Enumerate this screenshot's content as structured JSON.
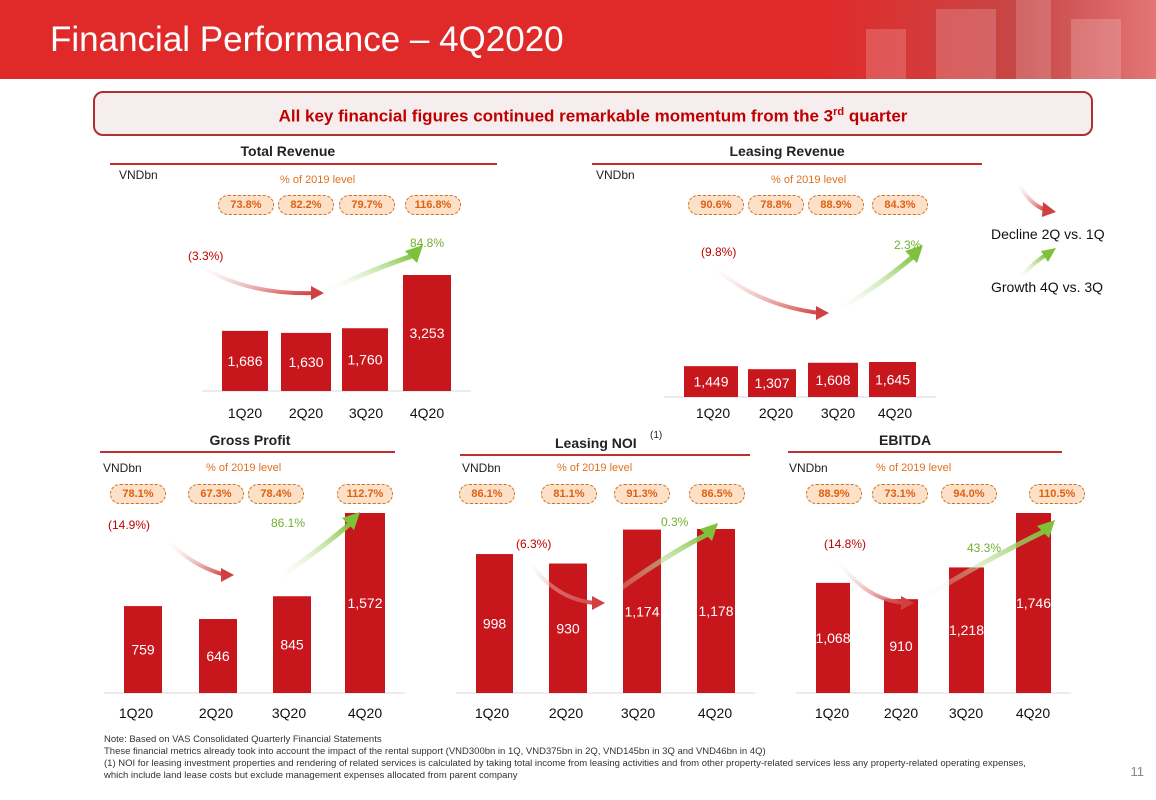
{
  "header": {
    "title": "Financial Performance – 4Q2020"
  },
  "banner": {
    "text": "All key financial figures continued remarkable momentum from the 3",
    "sup": "rd",
    "tail": " quarter"
  },
  "legend": {
    "decline": "Decline 2Q vs. 1Q",
    "growth": "Growth 4Q vs. 3Q"
  },
  "colors": {
    "bar": "#c8161d",
    "decline_arrow": "#d04040",
    "growth_arrow": "#7dc23a",
    "header": "#e02a2a"
  },
  "chart_data": [
    {
      "type": "bar",
      "title": "Total Revenue",
      "unit": "VNDbn",
      "pct_label": "% of 2019 level",
      "categories": [
        "1Q20",
        "2Q20",
        "3Q20",
        "4Q20"
      ],
      "values": [
        1686,
        1630,
        1760,
        3253
      ],
      "value_labels": [
        "1,686",
        "1,630",
        "1,760",
        "3,253"
      ],
      "pct_of_2019": [
        "73.8%",
        "82.2%",
        "79.7%",
        "116.8%"
      ],
      "decline_label": "(3.3%)",
      "growth_label": "84.8%"
    },
    {
      "type": "bar",
      "title": "Leasing Revenue",
      "unit": "VNDbn",
      "pct_label": "% of 2019 level",
      "categories": [
        "1Q20",
        "2Q20",
        "3Q20",
        "4Q20"
      ],
      "values": [
        1449,
        1307,
        1608,
        1645
      ],
      "value_labels": [
        "1,449",
        "1,307",
        "1,608",
        "1,645"
      ],
      "pct_of_2019": [
        "90.6%",
        "78.8%",
        "88.9%",
        "84.3%"
      ],
      "decline_label": "(9.8%)",
      "growth_label": "2.3%"
    },
    {
      "type": "bar",
      "title": "Gross Profit",
      "unit": "VNDbn",
      "pct_label": "% of 2019 level",
      "categories": [
        "1Q20",
        "2Q20",
        "3Q20",
        "4Q20"
      ],
      "values": [
        759,
        646,
        845,
        1572
      ],
      "value_labels": [
        "759",
        "646",
        "845",
        "1,572"
      ],
      "pct_of_2019": [
        "78.1%",
        "67.3%",
        "78.4%",
        "112.7%"
      ],
      "decline_label": "(14.9%)",
      "growth_label": "86.1%"
    },
    {
      "type": "bar",
      "title": "Leasing NOI",
      "title_sup": "(1)",
      "unit": "VNDbn",
      "pct_label": "% of 2019 level",
      "categories": [
        "1Q20",
        "2Q20",
        "3Q20",
        "4Q20"
      ],
      "values": [
        998,
        930,
        1174,
        1178
      ],
      "value_labels": [
        "998",
        "930",
        "1,174",
        "1,178"
      ],
      "pct_of_2019": [
        "86.1%",
        "81.1%",
        "91.3%",
        "86.5%"
      ],
      "decline_label": "(6.3%)",
      "growth_label": "0.3%"
    },
    {
      "type": "bar",
      "title": "EBITDA",
      "unit": "VNDbn",
      "pct_label": "% of 2019 level",
      "categories": [
        "1Q20",
        "2Q20",
        "3Q20",
        "4Q20"
      ],
      "values": [
        1068,
        910,
        1218,
        1746
      ],
      "value_labels": [
        "1,068",
        "910",
        "1,218",
        "1,746"
      ],
      "pct_of_2019": [
        "88.9%",
        "73.1%",
        "94.0%",
        "110.5%"
      ],
      "decline_label": "(14.8%)",
      "growth_label": "43.3%"
    }
  ],
  "notes": [
    "Note: Based on VAS Consolidated Quarterly Financial Statements",
    "These financial metrics already took into account the impact of the rental support (VND300bn in 1Q, VND375bn in 2Q, VND145bn in 3Q and VND46bn in 4Q)",
    "(1) NOI for leasing investment properties and rendering of related services is calculated by taking total income from leasing activities and from other property-related services less any property-related operating expenses,",
    "which include land lease costs but exclude management expenses allocated from parent company"
  ],
  "page_number": "11"
}
